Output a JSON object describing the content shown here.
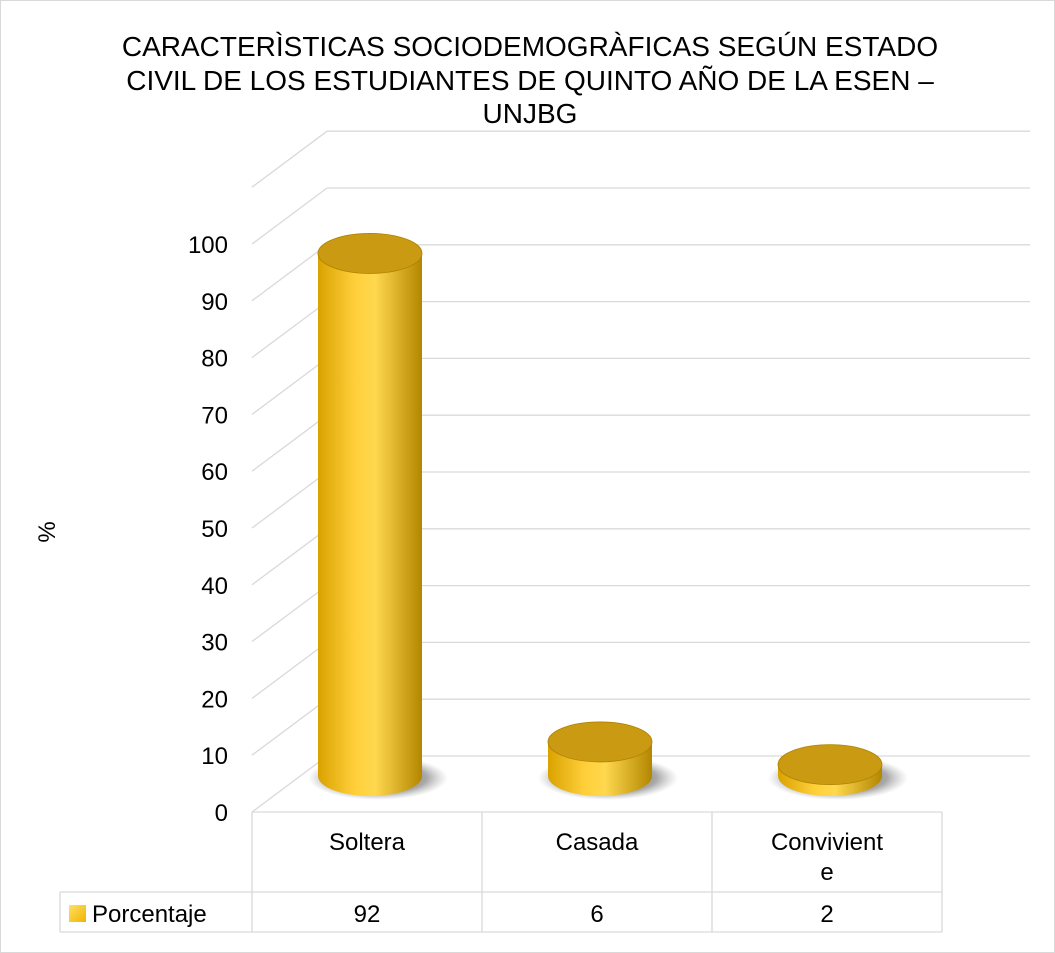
{
  "chart_data": {
    "type": "bar",
    "title": "CARACTERÌSTICAS SOCIODEMOGRÀFICAS SEGÚN ESTADO CIVIL DE LOS ESTUDIANTES DE QUINTO AÑO DE LA ESEN – UNJBG",
    "ylabel": "%",
    "xlabel": "",
    "categories": [
      "Soltera",
      "Casada",
      "Convivient\ne"
    ],
    "series": [
      {
        "name": "Porcentaje",
        "values": [
          92,
          6,
          2
        ]
      }
    ],
    "ylim": [
      0,
      100
    ],
    "yticks": [
      0,
      10,
      20,
      30,
      40,
      50,
      60,
      70,
      80,
      90,
      100
    ],
    "grid": true,
    "legend": "data-table",
    "data_table": true,
    "style": "3d-cylinder"
  },
  "colors": {
    "bar_light": "#ffd24a",
    "bar_mid": "#f2bb00",
    "bar_dark": "#b38a00",
    "top_face": "#c99a12",
    "grid": "#d9d9d9",
    "shadow": "#3a3a3a"
  }
}
